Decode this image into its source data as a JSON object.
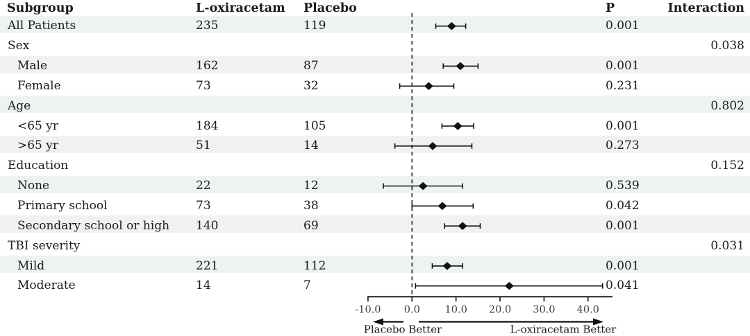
{
  "chart_data": {
    "type": "forest",
    "title": "",
    "columns": {
      "subgroup": "Subgroup",
      "treatment": "L-oxiracetam",
      "placebo": "Placebo",
      "p": "P",
      "interaction": "Interaction"
    },
    "axis": {
      "ticks": [
        -10.0,
        0.0,
        10.0,
        20.0,
        30.0,
        40.0
      ],
      "tick_labels": [
        "-10.0",
        "0.0",
        "10.0",
        "20.0",
        "30.0",
        "40.0"
      ],
      "xmin": -10.0,
      "xmax": 45.5,
      "zero_line": 0.0,
      "left_label": "Placebo Better",
      "right_label": "L-oxiracetam Better"
    },
    "rows": [
      {
        "label": "All Patients",
        "n_treatment": "235",
        "n_placebo": "119",
        "est": 9.0,
        "lo": 5.4,
        "hi": 12.2,
        "p": "0.001",
        "interaction": ""
      },
      {
        "label": "Sex",
        "n_treatment": "",
        "n_placebo": "",
        "p": "",
        "interaction": "0.038"
      },
      {
        "label": "Male",
        "n_treatment": "162",
        "n_placebo": "87",
        "est": 11.0,
        "lo": 7.1,
        "hi": 15.0,
        "p": "0.001",
        "interaction": ""
      },
      {
        "label": "Female",
        "n_treatment": "73",
        "n_placebo": "32",
        "est": 3.8,
        "lo": -2.8,
        "hi": 9.5,
        "p": "0.231",
        "interaction": ""
      },
      {
        "label": "Age",
        "n_treatment": "",
        "n_placebo": "",
        "p": "",
        "interaction": "0.802"
      },
      {
        "label": "<65 yr",
        "n_treatment": "184",
        "n_placebo": "105",
        "est": 10.4,
        "lo": 6.8,
        "hi": 14.0,
        "p": "0.001",
        "interaction": ""
      },
      {
        "label": ">65 yr",
        "n_treatment": "51",
        "n_placebo": "14",
        "est": 4.7,
        "lo": -3.9,
        "hi": 13.6,
        "p": "0.273",
        "interaction": ""
      },
      {
        "label": "Education",
        "n_treatment": "",
        "n_placebo": "",
        "p": "",
        "interaction": "0.152"
      },
      {
        "label": "None",
        "n_treatment": "22",
        "n_placebo": "12",
        "est": 2.5,
        "lo": -6.5,
        "hi": 11.5,
        "p": "0.539",
        "interaction": ""
      },
      {
        "label": "Primary school",
        "n_treatment": "73",
        "n_placebo": "38",
        "est": 6.9,
        "lo": 0.0,
        "hi": 13.9,
        "p": "0.042",
        "interaction": ""
      },
      {
        "label": "Secondary school or high",
        "n_treatment": "140",
        "n_placebo": "69",
        "est": 11.5,
        "lo": 7.4,
        "hi": 15.5,
        "p": "0.001",
        "interaction": ""
      },
      {
        "label": "TBI severity",
        "n_treatment": "",
        "n_placebo": "",
        "p": "",
        "interaction": "0.031"
      },
      {
        "label": "Mild",
        "n_treatment": "221",
        "n_placebo": "112",
        "est": 8.0,
        "lo": 4.6,
        "hi": 11.5,
        "p": "0.001",
        "interaction": ""
      },
      {
        "label": "Moderate",
        "n_treatment": "14",
        "n_placebo": "7",
        "est": 22.1,
        "lo": 0.8,
        "hi": 43.3,
        "p": "0.041",
        "interaction": ""
      }
    ],
    "colors": {
      "marker": "#111111",
      "stripe": "#eef2f1",
      "text": "#1b1b1b",
      "tick_text": "#3d3d3d"
    }
  }
}
